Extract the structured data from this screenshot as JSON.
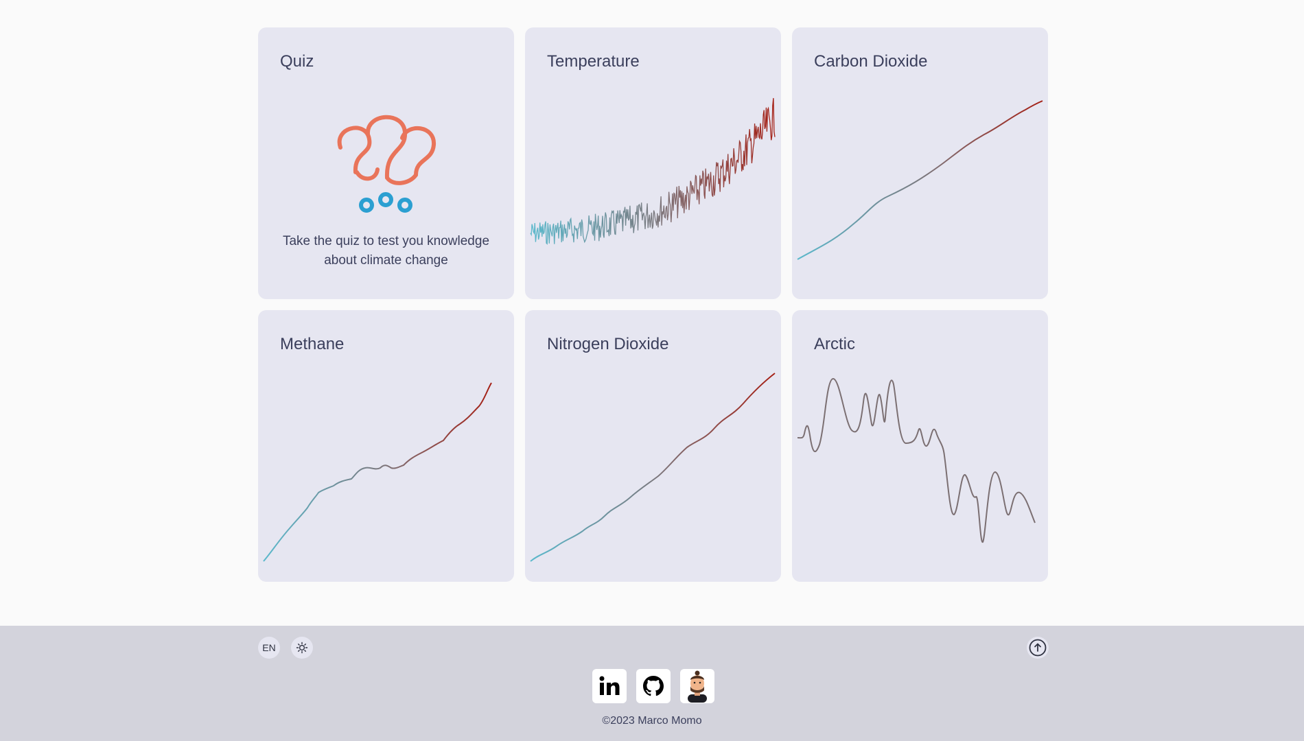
{
  "cards": [
    {
      "title": "Quiz",
      "text": "Take the quiz to test you knowledge about climate change"
    },
    {
      "title": "Temperature"
    },
    {
      "title": "Carbon Dioxide"
    },
    {
      "title": "Methane"
    },
    {
      "title": "Nitrogen Dioxide"
    },
    {
      "title": "Arctic"
    }
  ],
  "footer": {
    "language": "EN",
    "copyright": "©2023 Marco Momo",
    "social": [
      "linkedin-icon",
      "github-icon",
      "avatar"
    ]
  },
  "colors": {
    "card_bg": "#e6e6f1",
    "footer_bg": "#d3d3dc",
    "line_start": "#5bb9cc",
    "line_end": "#a51f14",
    "quiz_orange": "#e9745a",
    "quiz_blue": "#2b9fd1"
  }
}
